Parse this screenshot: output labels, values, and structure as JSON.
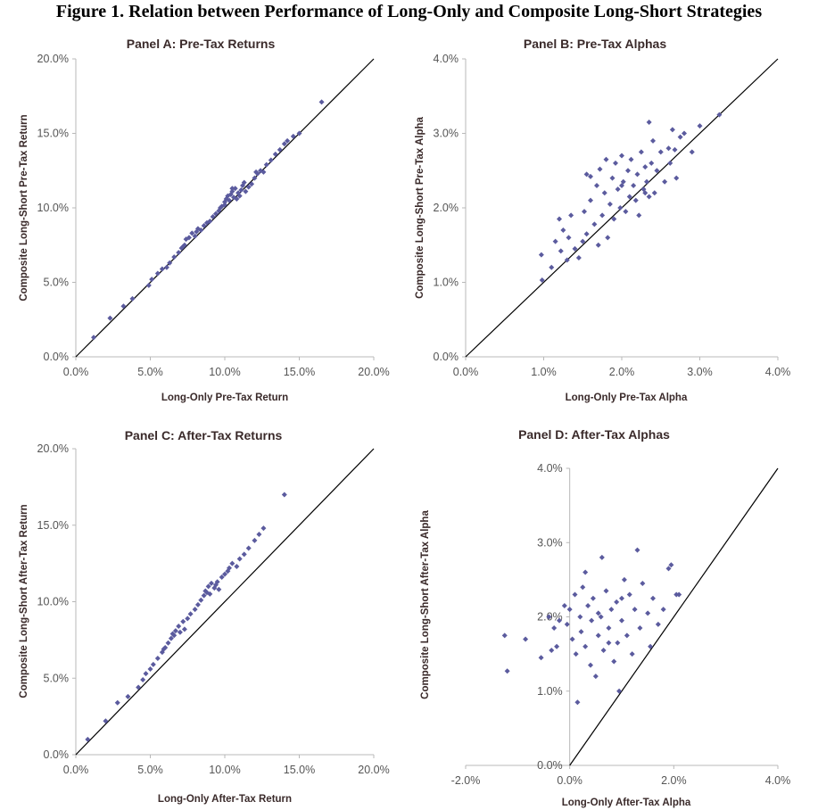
{
  "figure": {
    "title": "Figure 1. Relation between Performance of Long-Only and Composite Long-Short Strategies"
  },
  "chart_data": [
    {
      "id": "A",
      "type": "scatter",
      "title": "Panel A: Pre-Tax Returns",
      "xlabel": "Long-Only Pre-Tax Return",
      "ylabel": "Composite Long-Short Pre-Tax Return",
      "xlim": [
        0,
        20
      ],
      "ylim": [
        0,
        20
      ],
      "xticks": [
        "0.0%",
        "5.0%",
        "10.0%",
        "15.0%",
        "20.0%"
      ],
      "xtick_values": [
        0,
        5,
        10,
        15,
        20
      ],
      "yticks": [
        "0.0%",
        "5.0%",
        "10.0%",
        "15.0%",
        "20.0%"
      ],
      "ytick_values": [
        0,
        5,
        10,
        15,
        20
      ],
      "reference_line": {
        "from": [
          0,
          0
        ],
        "to": [
          20,
          20
        ]
      },
      "marker_color": "#5b5b9e",
      "line_color": "#000000",
      "points": [
        [
          1.2,
          1.3
        ],
        [
          2.3,
          2.6
        ],
        [
          3.2,
          3.4
        ],
        [
          3.8,
          3.9
        ],
        [
          4.9,
          4.8
        ],
        [
          5.1,
          5.2
        ],
        [
          5.5,
          5.6
        ],
        [
          5.8,
          5.9
        ],
        [
          6.3,
          6.3
        ],
        [
          6.6,
          6.7
        ],
        [
          6.9,
          7.0
        ],
        [
          7.1,
          7.3
        ],
        [
          7.3,
          7.5
        ],
        [
          7.4,
          7.9
        ],
        [
          7.6,
          8.0
        ],
        [
          7.8,
          8.3
        ],
        [
          8.0,
          8.1
        ],
        [
          8.2,
          8.6
        ],
        [
          8.4,
          8.5
        ],
        [
          8.6,
          8.8
        ],
        [
          8.8,
          9.0
        ],
        [
          9.0,
          9.1
        ],
        [
          9.2,
          9.4
        ],
        [
          9.4,
          9.6
        ],
        [
          9.6,
          9.8
        ],
        [
          9.8,
          10.1
        ],
        [
          10.0,
          10.4
        ],
        [
          10.1,
          10.6
        ],
        [
          10.2,
          10.8
        ],
        [
          10.3,
          10.5
        ],
        [
          10.4,
          10.9
        ],
        [
          10.5,
          11.1
        ],
        [
          10.6,
          10.7
        ],
        [
          10.7,
          11.3
        ],
        [
          10.8,
          10.6
        ],
        [
          10.9,
          11.0
        ],
        [
          11.0,
          10.8
        ],
        [
          11.1,
          11.2
        ],
        [
          11.2,
          11.5
        ],
        [
          11.4,
          11.1
        ],
        [
          11.6,
          11.4
        ],
        [
          11.8,
          11.6
        ],
        [
          12.0,
          12.0
        ],
        [
          12.2,
          12.3
        ],
        [
          12.4,
          12.5
        ],
        [
          12.6,
          12.4
        ],
        [
          12.8,
          12.9
        ],
        [
          13.1,
          13.2
        ],
        [
          13.4,
          13.6
        ],
        [
          13.7,
          13.9
        ],
        [
          14.0,
          14.3
        ],
        [
          14.2,
          14.5
        ],
        [
          14.6,
          14.8
        ],
        [
          15.0,
          15.0
        ],
        [
          16.5,
          17.1
        ],
        [
          9.7,
          10.0
        ],
        [
          10.5,
          11.3
        ],
        [
          11.3,
          11.7
        ],
        [
          8.1,
          8.4
        ],
        [
          7.2,
          7.4
        ],
        [
          6.1,
          6.0
        ],
        [
          10.0,
          10.2
        ],
        [
          12.1,
          12.4
        ]
      ]
    },
    {
      "id": "B",
      "type": "scatter",
      "title": "Panel B: Pre-Tax Alphas",
      "xlabel": "Long-Only Pre-Tax Alpha",
      "ylabel": "Composite Long-Short Pre-Tax Alpha",
      "xlim": [
        0,
        4
      ],
      "ylim": [
        0,
        4
      ],
      "xticks": [
        "0.0%",
        "1.0%",
        "2.0%",
        "3.0%",
        "4.0%"
      ],
      "xtick_values": [
        0,
        1,
        2,
        3,
        4
      ],
      "yticks": [
        "0.0%",
        "1.0%",
        "2.0%",
        "3.0%",
        "4.0%"
      ],
      "ytick_values": [
        0,
        1,
        2,
        3,
        4
      ],
      "reference_line": {
        "from": [
          0,
          0
        ],
        "to": [
          4,
          4
        ]
      },
      "marker_color": "#5b5b9e",
      "line_color": "#000000",
      "points": [
        [
          0.97,
          1.37
        ],
        [
          0.98,
          1.03
        ],
        [
          1.1,
          1.2
        ],
        [
          1.15,
          1.55
        ],
        [
          1.2,
          1.85
        ],
        [
          1.22,
          1.42
        ],
        [
          1.25,
          1.7
        ],
        [
          1.3,
          1.3
        ],
        [
          1.32,
          1.6
        ],
        [
          1.35,
          1.9
        ],
        [
          1.4,
          1.45
        ],
        [
          1.45,
          1.33
        ],
        [
          1.5,
          1.55
        ],
        [
          1.52,
          1.95
        ],
        [
          1.55,
          1.65
        ],
        [
          1.6,
          2.1
        ],
        [
          1.6,
          2.42
        ],
        [
          1.65,
          1.78
        ],
        [
          1.68,
          2.3
        ],
        [
          1.7,
          1.5
        ],
        [
          1.72,
          2.52
        ],
        [
          1.75,
          1.9
        ],
        [
          1.78,
          2.2
        ],
        [
          1.8,
          2.65
        ],
        [
          1.82,
          1.6
        ],
        [
          1.85,
          2.05
        ],
        [
          1.88,
          2.4
        ],
        [
          1.9,
          1.85
        ],
        [
          1.92,
          2.6
        ],
        [
          1.95,
          2.25
        ],
        [
          1.98,
          2.0
        ],
        [
          2.0,
          2.7
        ],
        [
          2.02,
          2.35
        ],
        [
          2.05,
          1.95
        ],
        [
          2.08,
          2.5
        ],
        [
          2.1,
          2.15
        ],
        [
          2.12,
          2.65
        ],
        [
          2.15,
          2.3
        ],
        [
          2.18,
          2.1
        ],
        [
          2.2,
          2.45
        ],
        [
          2.22,
          1.9
        ],
        [
          2.25,
          2.75
        ],
        [
          2.28,
          2.25
        ],
        [
          2.3,
          2.55
        ],
        [
          2.32,
          2.35
        ],
        [
          2.35,
          2.15
        ],
        [
          2.38,
          2.6
        ],
        [
          2.4,
          2.9
        ],
        [
          2.42,
          2.2
        ],
        [
          2.45,
          2.5
        ],
        [
          2.5,
          2.75
        ],
        [
          2.55,
          2.35
        ],
        [
          2.6,
          2.8
        ],
        [
          2.62,
          2.6
        ],
        [
          2.65,
          3.05
        ],
        [
          2.68,
          2.78
        ],
        [
          2.7,
          2.4
        ],
        [
          2.75,
          2.95
        ],
        [
          2.8,
          3.0
        ],
        [
          2.9,
          2.75
        ],
        [
          3.0,
          3.1
        ],
        [
          3.25,
          3.25
        ],
        [
          2.35,
          3.15
        ],
        [
          1.55,
          2.45
        ],
        [
          2.3,
          2.2
        ],
        [
          2.0,
          2.3
        ]
      ]
    },
    {
      "id": "C",
      "type": "scatter",
      "title": "Panel C: After-Tax Returns",
      "xlabel": "Long-Only After-Tax Return",
      "ylabel": "Composite Long-Short After-Tax Return",
      "xlim": [
        0,
        20
      ],
      "ylim": [
        0,
        20
      ],
      "xticks": [
        "0.0%",
        "5.0%",
        "10.0%",
        "15.0%",
        "20.0%"
      ],
      "xtick_values": [
        0,
        5,
        10,
        15,
        20
      ],
      "yticks": [
        "0.0%",
        "5.0%",
        "10.0%",
        "15.0%",
        "20.0%"
      ],
      "ytick_values": [
        0,
        5,
        10,
        15,
        20
      ],
      "reference_line": {
        "from": [
          0,
          0
        ],
        "to": [
          20,
          20
        ]
      },
      "marker_color": "#5b5b9e",
      "line_color": "#000000",
      "points": [
        [
          0.8,
          1.0
        ],
        [
          2.0,
          2.2
        ],
        [
          2.8,
          3.4
        ],
        [
          3.5,
          3.8
        ],
        [
          4.2,
          4.4
        ],
        [
          4.5,
          4.9
        ],
        [
          4.7,
          5.3
        ],
        [
          5.0,
          5.6
        ],
        [
          5.2,
          5.9
        ],
        [
          5.5,
          6.3
        ],
        [
          5.8,
          6.7
        ],
        [
          6.0,
          7.0
        ],
        [
          6.2,
          7.3
        ],
        [
          6.4,
          7.6
        ],
        [
          6.5,
          7.9
        ],
        [
          6.7,
          8.1
        ],
        [
          6.9,
          8.4
        ],
        [
          7.0,
          8.0
        ],
        [
          7.2,
          8.7
        ],
        [
          7.5,
          8.9
        ],
        [
          7.7,
          9.2
        ],
        [
          8.0,
          9.5
        ],
        [
          8.2,
          9.8
        ],
        [
          8.4,
          10.1
        ],
        [
          8.6,
          10.4
        ],
        [
          8.7,
          10.7
        ],
        [
          8.9,
          11.0
        ],
        [
          9.0,
          10.5
        ],
        [
          9.1,
          11.2
        ],
        [
          9.3,
          10.9
        ],
        [
          9.5,
          11.3
        ],
        [
          9.6,
          10.8
        ],
        [
          9.8,
          11.6
        ],
        [
          10.0,
          11.8
        ],
        [
          10.3,
          12.2
        ],
        [
          10.5,
          12.5
        ],
        [
          10.8,
          12.3
        ],
        [
          11.0,
          12.8
        ],
        [
          11.3,
          13.1
        ],
        [
          11.6,
          13.5
        ],
        [
          12.0,
          14.0
        ],
        [
          12.3,
          14.4
        ],
        [
          12.6,
          14.8
        ],
        [
          14.0,
          17.0
        ],
        [
          7.3,
          8.2
        ],
        [
          8.8,
          10.6
        ],
        [
          9.4,
          11.1
        ],
        [
          6.6,
          7.8
        ],
        [
          5.9,
          6.9
        ],
        [
          10.2,
          12.0
        ]
      ]
    },
    {
      "id": "D",
      "type": "scatter",
      "title": "Panel D: After-Tax Alphas",
      "xlabel": "Long-Only After-Tax Alpha",
      "ylabel": "Composite Long-Short After-Tax Alpha",
      "xlim": [
        -2,
        4
      ],
      "ylim": [
        0,
        4
      ],
      "xticks": [
        "-2.0%",
        "0.0%",
        "2.0%",
        "4.0%"
      ],
      "xtick_values": [
        -2,
        0,
        2,
        4
      ],
      "yticks": [
        "0.0%",
        "1.0%",
        "2.0%",
        "3.0%",
        "4.0%"
      ],
      "ytick_values": [
        0,
        1,
        2,
        3,
        4
      ],
      "reference_line": {
        "from": [
          0,
          0
        ],
        "to": [
          4,
          4
        ]
      },
      "marker_color": "#5b5b9e",
      "line_color": "#000000",
      "points": [
        [
          -1.25,
          1.75
        ],
        [
          -1.2,
          1.27
        ],
        [
          -0.85,
          1.7
        ],
        [
          -0.55,
          1.45
        ],
        [
          -0.4,
          2.0
        ],
        [
          -0.35,
          1.55
        ],
        [
          -0.3,
          1.85
        ],
        [
          -0.25,
          1.6
        ],
        [
          -0.1,
          2.15
        ],
        [
          -0.05,
          1.9
        ],
        [
          0.0,
          2.1
        ],
        [
          0.05,
          1.7
        ],
        [
          0.1,
          2.3
        ],
        [
          0.12,
          1.5
        ],
        [
          0.15,
          0.85
        ],
        [
          0.2,
          2.0
        ],
        [
          0.22,
          1.8
        ],
        [
          0.25,
          2.4
        ],
        [
          0.3,
          1.6
        ],
        [
          0.35,
          2.15
        ],
        [
          0.4,
          1.35
        ],
        [
          0.42,
          1.95
        ],
        [
          0.45,
          2.25
        ],
        [
          0.5,
          1.2
        ],
        [
          0.55,
          1.75
        ],
        [
          0.6,
          2.0
        ],
        [
          0.62,
          2.8
        ],
        [
          0.65,
          1.55
        ],
        [
          0.7,
          2.35
        ],
        [
          0.75,
          1.85
        ],
        [
          0.8,
          2.1
        ],
        [
          0.85,
          1.4
        ],
        [
          0.9,
          2.2
        ],
        [
          0.92,
          1.65
        ],
        [
          0.95,
          1.0
        ],
        [
          1.0,
          1.95
        ],
        [
          1.05,
          2.5
        ],
        [
          1.1,
          1.75
        ],
        [
          1.15,
          2.3
        ],
        [
          1.2,
          1.5
        ],
        [
          1.25,
          2.1
        ],
        [
          1.3,
          2.9
        ],
        [
          1.35,
          1.85
        ],
        [
          1.4,
          2.45
        ],
        [
          1.5,
          2.05
        ],
        [
          1.55,
          1.6
        ],
        [
          1.6,
          2.25
        ],
        [
          1.7,
          1.9
        ],
        [
          1.8,
          2.1
        ],
        [
          1.9,
          2.65
        ],
        [
          1.95,
          2.7
        ],
        [
          2.05,
          2.3
        ],
        [
          2.1,
          2.3
        ],
        [
          0.3,
          2.6
        ],
        [
          0.55,
          2.05
        ],
        [
          0.75,
          1.65
        ],
        [
          1.0,
          2.25
        ],
        [
          -0.2,
          1.95
        ]
      ]
    }
  ]
}
